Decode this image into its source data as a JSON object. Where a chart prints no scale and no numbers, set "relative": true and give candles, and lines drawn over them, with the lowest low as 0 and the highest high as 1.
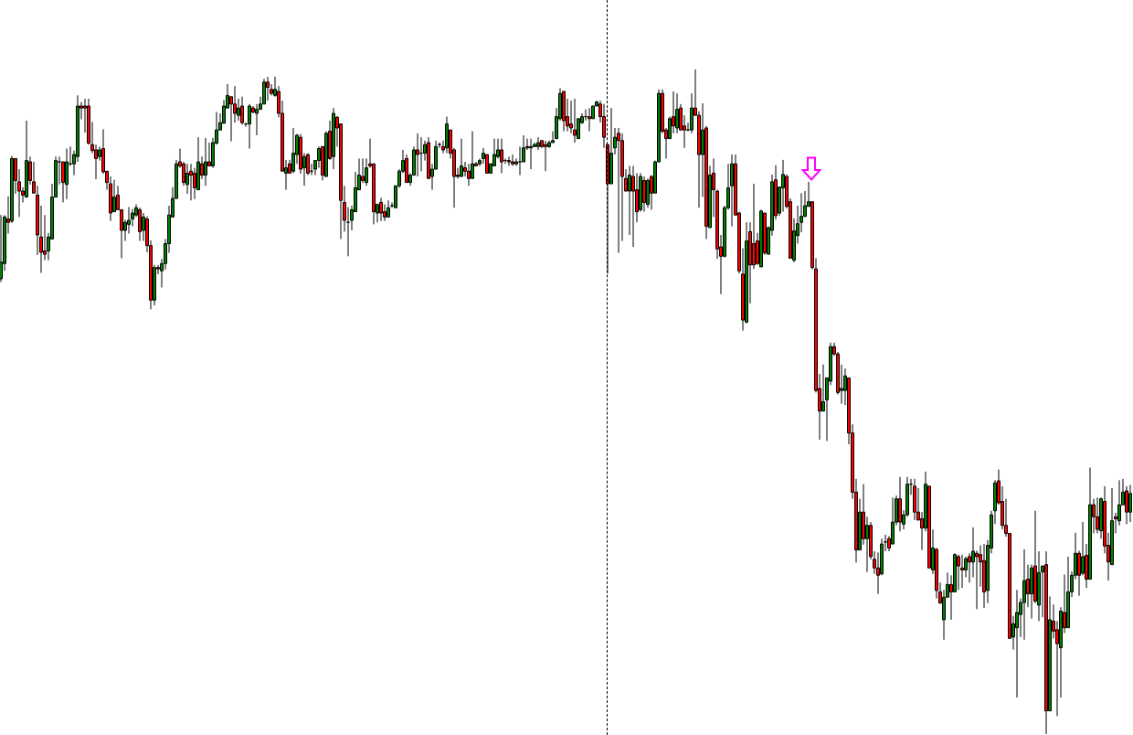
{
  "chart_data": {
    "type": "candlestick",
    "relative": true,
    "categories": [
      null,
      null,
      null,
      null,
      null,
      null,
      null,
      null,
      null,
      null,
      null,
      null,
      null,
      null,
      null,
      null,
      null,
      null,
      null,
      null,
      null,
      null,
      null,
      null,
      null,
      null,
      null,
      null,
      null,
      null,
      null,
      null,
      null,
      null,
      null,
      null,
      null,
      null,
      null,
      null,
      null,
      null,
      null,
      null,
      null,
      null,
      null,
      null,
      null,
      null,
      null,
      null,
      null,
      null,
      null,
      null,
      null,
      null,
      null,
      null,
      null,
      null,
      null,
      null,
      null,
      null,
      null,
      null,
      null,
      null,
      null,
      null,
      null,
      null,
      null,
      null,
      null,
      null,
      null,
      null,
      null,
      null,
      null,
      null,
      null,
      null,
      null,
      null,
      null,
      null,
      null,
      null,
      null,
      null,
      null,
      null,
      null,
      null,
      null,
      null,
      null,
      null,
      null,
      null,
      null,
      null,
      null,
      null,
      null,
      null,
      null,
      null,
      null,
      null,
      null,
      null,
      null,
      null,
      null,
      null,
      null,
      null,
      null,
      null,
      null,
      null,
      null,
      null,
      null,
      null,
      null,
      null,
      null,
      null,
      null,
      null,
      null,
      null,
      null,
      null,
      null,
      null,
      null,
      null,
      null,
      null,
      null,
      null,
      null,
      null,
      null,
      null,
      null,
      null,
      null,
      null,
      null,
      null,
      null,
      null,
      null,
      null,
      null,
      null,
      null,
      null,
      null,
      null,
      null,
      null,
      null,
      null,
      null,
      null,
      null,
      null,
      null,
      null,
      null,
      null,
      null,
      null,
      null,
      null,
      null,
      null,
      null,
      null,
      null,
      null,
      null,
      null,
      null,
      null,
      null,
      null,
      null,
      null,
      null,
      null,
      null,
      null,
      null,
      null,
      null,
      null,
      null,
      null,
      null,
      null,
      null,
      null,
      null,
      null,
      null,
      null,
      null,
      null,
      null,
      null,
      null,
      null,
      null,
      null,
      null,
      null,
      null,
      null,
      null,
      null,
      null,
      null,
      null,
      null,
      null,
      null,
      null,
      null,
      null,
      null,
      null,
      null,
      null,
      null,
      null,
      null,
      null,
      null,
      null,
      null,
      null,
      null,
      null,
      null,
      null,
      null,
      null,
      null,
      null,
      null,
      null,
      null,
      null,
      null,
      null,
      null,
      null,
      null,
      null,
      null,
      null,
      null,
      null,
      null,
      null,
      null,
      null,
      null,
      null,
      null,
      null,
      null,
      null,
      null,
      null,
      null,
      null,
      null,
      null,
      null,
      null,
      null,
      null,
      null,
      null,
      null,
      null,
      null,
      null,
      null,
      null,
      null,
      null,
      null,
      null,
      null,
      null,
      null,
      null,
      null
    ],
    "ohlc": [
      [
        0.685,
        0.781,
        0.68,
        0.71
      ],
      [
        0.708,
        0.781,
        0.697,
        0.778
      ],
      [
        0.775,
        0.809,
        0.753,
        0.77
      ],
      [
        0.772,
        0.87,
        0.769,
        0.866
      ],
      [
        0.866,
        0.866,
        0.813,
        0.833
      ],
      [
        0.831,
        0.85,
        0.778,
        0.817
      ],
      [
        0.817,
        0.823,
        0.8,
        0.811
      ],
      [
        0.808,
        0.923,
        0.808,
        0.863
      ],
      [
        0.861,
        0.869,
        0.827,
        0.833
      ],
      [
        0.831,
        0.861,
        0.814,
        0.814
      ],
      [
        0.811,
        0.825,
        0.721,
        0.751
      ],
      [
        0.748,
        0.795,
        0.694,
        0.725
      ],
      [
        0.727,
        0.781,
        0.713,
        0.722
      ],
      [
        0.727,
        0.754,
        0.713,
        0.748
      ],
      [
        0.745,
        0.828,
        0.745,
        0.808
      ],
      [
        0.808,
        0.869,
        0.808,
        0.863
      ],
      [
        0.861,
        0.869,
        0.827,
        0.861
      ],
      [
        0.861,
        0.861,
        0.8,
        0.83
      ],
      [
        0.827,
        0.881,
        0.805,
        0.861
      ],
      [
        0.858,
        0.884,
        0.855,
        0.858
      ],
      [
        0.858,
        0.878,
        0.841,
        0.872
      ],
      [
        0.869,
        0.961,
        0.861,
        0.945
      ],
      [
        0.945,
        0.951,
        0.925,
        0.942
      ],
      [
        0.945,
        0.956,
        0.905,
        0.942
      ],
      [
        0.945,
        0.956,
        0.887,
        0.889
      ],
      [
        0.887,
        0.921,
        0.874,
        0.878
      ],
      [
        0.879,
        0.887,
        0.835,
        0.866
      ],
      [
        0.869,
        0.884,
        0.863,
        0.879
      ],
      [
        0.881,
        0.91,
        0.843,
        0.846
      ],
      [
        0.847,
        0.847,
        0.819,
        0.83
      ],
      [
        0.828,
        0.839,
        0.772,
        0.784
      ],
      [
        0.786,
        0.834,
        0.786,
        0.808
      ],
      [
        0.811,
        0.825,
        0.789,
        0.789
      ],
      [
        0.789,
        0.789,
        0.716,
        0.758
      ],
      [
        0.758,
        0.774,
        0.742,
        0.77
      ],
      [
        0.767,
        0.793,
        0.753,
        0.773
      ],
      [
        0.775,
        0.79,
        0.764,
        0.784
      ],
      [
        0.781,
        0.797,
        0.778,
        0.792
      ],
      [
        0.789,
        0.792,
        0.742,
        0.756
      ],
      [
        0.758,
        0.784,
        0.742,
        0.778
      ],
      [
        0.775,
        0.779,
        0.725,
        0.735
      ],
      [
        0.735,
        0.743,
        0.639,
        0.653
      ],
      [
        0.653,
        0.706,
        0.645,
        0.702
      ],
      [
        0.702,
        0.706,
        0.692,
        0.7
      ],
      [
        0.697,
        0.715,
        0.672,
        0.708
      ],
      [
        0.708,
        0.745,
        0.699,
        0.738
      ],
      [
        0.738,
        0.795,
        0.724,
        0.781
      ],
      [
        0.778,
        0.823,
        0.778,
        0.806
      ],
      [
        0.806,
        0.864,
        0.806,
        0.858
      ],
      [
        0.861,
        0.881,
        0.852,
        0.855
      ],
      [
        0.858,
        0.861,
        0.825,
        0.83
      ],
      [
        0.827,
        0.858,
        0.813,
        0.844
      ],
      [
        0.847,
        0.858,
        0.803,
        0.841
      ],
      [
        0.844,
        0.852,
        0.805,
        0.822
      ],
      [
        0.819,
        0.898,
        0.819,
        0.861
      ],
      [
        0.858,
        0.869,
        0.835,
        0.841
      ],
      [
        0.841,
        0.897,
        0.825,
        0.861
      ],
      [
        0.861,
        0.89,
        0.855,
        0.855
      ],
      [
        0.855,
        0.897,
        0.852,
        0.89
      ],
      [
        0.889,
        0.936,
        0.887,
        0.909
      ],
      [
        0.909,
        0.934,
        0.909,
        0.92
      ],
      [
        0.919,
        0.954,
        0.919,
        0.945
      ],
      [
        0.942,
        0.978,
        0.942,
        0.961
      ],
      [
        0.959,
        0.959,
        0.892,
        0.948
      ],
      [
        0.948,
        0.975,
        0.92,
        0.934
      ],
      [
        0.931,
        0.956,
        0.923,
        0.942
      ],
      [
        0.945,
        0.959,
        0.917,
        0.92
      ],
      [
        0.918,
        0.92,
        0.914,
        0.918
      ],
      [
        0.918,
        0.948,
        0.881,
        0.945
      ],
      [
        0.942,
        0.945,
        0.934,
        0.936
      ],
      [
        0.934,
        0.948,
        0.901,
        0.94
      ],
      [
        0.94,
        0.959,
        0.94,
        0.948
      ],
      [
        0.948,
        0.986,
        0.948,
        0.981
      ],
      [
        0.981,
        0.989,
        0.953,
        0.973
      ],
      [
        0.97,
        0.978,
        0.961,
        0.964
      ],
      [
        0.961,
        0.989,
        0.959,
        0.97
      ],
      [
        0.967,
        0.975,
        0.928,
        0.934
      ],
      [
        0.934,
        0.953,
        0.847,
        0.847
      ],
      [
        0.844,
        0.864,
        0.819,
        0.852
      ],
      [
        0.858,
        0.864,
        0.844,
        0.844
      ],
      [
        0.847,
        0.912,
        0.844,
        0.874
      ],
      [
        0.872,
        0.903,
        0.858,
        0.901
      ],
      [
        0.898,
        0.903,
        0.843,
        0.85
      ],
      [
        0.852,
        0.874,
        0.825,
        0.869
      ],
      [
        0.872,
        0.874,
        0.841,
        0.844
      ],
      [
        0.847,
        0.858,
        0.841,
        0.847
      ],
      [
        0.85,
        0.863,
        0.841,
        0.863
      ],
      [
        0.863,
        0.884,
        0.852,
        0.881
      ],
      [
        0.884,
        0.884,
        0.833,
        0.841
      ],
      [
        0.839,
        0.907,
        0.839,
        0.904
      ],
      [
        0.907,
        0.923,
        0.864,
        0.866
      ],
      [
        0.869,
        0.942,
        0.85,
        0.934
      ],
      [
        0.928,
        0.93,
        0.884,
        0.912
      ],
      [
        0.918,
        0.918,
        0.745,
        0.803
      ],
      [
        0.8,
        0.825,
        0.756,
        0.773
      ],
      [
        0.77,
        0.793,
        0.719,
        0.77
      ],
      [
        0.773,
        0.795,
        0.758,
        0.789
      ],
      [
        0.786,
        0.846,
        0.786,
        0.822
      ],
      [
        0.819,
        0.866,
        0.819,
        0.841
      ],
      [
        0.839,
        0.866,
        0.829,
        0.833
      ],
      [
        0.83,
        0.866,
        0.825,
        0.852
      ],
      [
        0.858,
        0.896,
        0.852,
        0.855
      ],
      [
        0.858,
        0.858,
        0.767,
        0.786
      ],
      [
        0.784,
        0.797,
        0.77,
        0.797
      ],
      [
        0.8,
        0.807,
        0.772,
        0.784
      ],
      [
        0.786,
        0.797,
        0.772,
        0.778
      ],
      [
        0.778,
        0.803,
        0.778,
        0.792
      ],
      [
        0.795,
        0.8,
        0.792,
        0.795
      ],
      [
        0.792,
        0.825,
        0.792,
        0.825
      ],
      [
        0.825,
        0.85,
        0.822,
        0.847
      ],
      [
        0.847,
        0.879,
        0.844,
        0.863
      ],
      [
        0.866,
        0.872,
        0.83,
        0.83
      ],
      [
        0.83,
        0.844,
        0.825,
        0.841
      ],
      [
        0.841,
        0.884,
        0.841,
        0.879
      ],
      [
        0.879,
        0.904,
        0.839,
        0.872
      ],
      [
        0.874,
        0.898,
        0.847,
        0.874
      ],
      [
        0.874,
        0.893,
        0.863,
        0.887
      ],
      [
        0.89,
        0.898,
        0.836,
        0.836
      ],
      [
        0.839,
        0.858,
        0.819,
        0.85
      ],
      [
        0.85,
        0.893,
        0.85,
        0.884
      ],
      [
        0.887,
        0.89,
        0.882,
        0.887
      ],
      [
        0.884,
        0.893,
        0.874,
        0.879
      ],
      [
        0.882,
        0.929,
        0.874,
        0.918
      ],
      [
        0.909,
        0.909,
        0.866,
        0.874
      ],
      [
        0.879,
        0.882,
        0.792,
        0.839
      ],
      [
        0.841,
        0.852,
        0.836,
        0.839
      ],
      [
        0.839,
        0.896,
        0.839,
        0.855
      ],
      [
        0.852,
        0.861,
        0.839,
        0.847
      ],
      [
        0.847,
        0.858,
        0.825,
        0.836
      ],
      [
        0.836,
        0.907,
        0.836,
        0.858
      ],
      [
        0.858,
        0.861,
        0.855,
        0.855
      ],
      [
        0.858,
        0.866,
        0.855,
        0.863
      ],
      [
        0.866,
        0.882,
        0.858,
        0.874
      ],
      [
        0.872,
        0.872,
        0.844,
        0.844
      ],
      [
        0.844,
        0.858,
        0.844,
        0.858
      ],
      [
        0.855,
        0.896,
        0.855,
        0.872
      ],
      [
        0.869,
        0.896,
        0.866,
        0.879
      ],
      [
        0.879,
        0.896,
        0.844,
        0.861
      ],
      [
        0.863,
        0.866,
        0.858,
        0.863
      ],
      [
        0.863,
        0.869,
        0.855,
        0.861
      ],
      [
        0.861,
        0.872,
        0.855,
        0.858
      ],
      [
        0.858,
        0.866,
        0.855,
        0.861
      ],
      [
        0.861,
        0.884,
        0.841,
        0.861
      ],
      [
        0.861,
        0.901,
        0.861,
        0.882
      ],
      [
        0.884,
        0.896,
        0.879,
        0.882
      ],
      [
        0.882,
        0.896,
        0.85,
        0.884
      ],
      [
        0.884,
        0.89,
        0.883,
        0.887
      ],
      [
        0.884,
        0.898,
        0.879,
        0.89
      ],
      [
        0.893,
        0.893,
        0.882,
        0.884
      ],
      [
        0.887,
        0.893,
        0.847,
        0.884
      ],
      [
        0.884,
        0.893,
        0.882,
        0.89
      ],
      [
        0.89,
        0.907,
        0.89,
        0.893
      ],
      [
        0.896,
        0.942,
        0.896,
        0.929
      ],
      [
        0.926,
        0.972,
        0.923,
        0.964
      ],
      [
        0.967,
        0.967,
        0.907,
        0.923
      ],
      [
        0.929,
        0.956,
        0.907,
        0.915
      ],
      [
        0.918,
        0.953,
        0.904,
        0.912
      ],
      [
        0.909,
        0.956,
        0.89,
        0.901
      ],
      [
        0.896,
        0.926,
        0.896,
        0.926
      ],
      [
        0.92,
        0.934,
        0.918,
        0.929
      ],
      [
        0.929,
        0.94,
        0.923,
        0.929
      ],
      [
        0.929,
        0.942,
        0.907,
        0.926
      ],
      [
        0.926,
        0.945,
        0.926,
        0.945
      ],
      [
        0.945,
        0.953,
        0.945,
        0.951
      ],
      [
        0.948,
        0.953,
        0.92,
        0.929
      ],
      [
        0.929,
        0.948,
        0.882,
        0.898
      ],
      [
        0.887,
        0.887,
        0.693,
        0.828
      ],
      [
        0.828,
        0.942,
        0.828,
        0.874
      ],
      [
        0.882,
        0.912,
        0.872,
        0.898
      ],
      [
        0.904,
        0.912,
        0.724,
        0.893
      ],
      [
        0.893,
        0.904,
        0.742,
        0.839
      ],
      [
        0.836,
        0.85,
        0.817,
        0.817
      ],
      [
        0.817,
        0.855,
        0.751,
        0.841
      ],
      [
        0.839,
        0.855,
        0.733,
        0.817
      ],
      [
        0.819,
        0.844,
        0.77,
        0.786
      ],
      [
        0.789,
        0.844,
        0.786,
        0.839
      ],
      [
        0.833,
        0.839,
        0.786,
        0.8
      ],
      [
        0.797,
        0.836,
        0.792,
        0.833
      ],
      [
        0.839,
        0.841,
        0.789,
        0.814
      ],
      [
        0.814,
        0.863,
        0.814,
        0.861
      ],
      [
        0.861,
        0.97,
        0.861,
        0.964
      ],
      [
        0.964,
        0.97,
        0.904,
        0.907
      ],
      [
        0.909,
        0.912,
        0.866,
        0.896
      ],
      [
        0.896,
        0.929,
        0.896,
        0.926
      ],
      [
        0.929,
        0.967,
        0.904,
        0.915
      ],
      [
        0.912,
        0.964,
        0.904,
        0.94
      ],
      [
        0.942,
        0.948,
        0.909,
        0.909
      ],
      [
        0.915,
        0.931,
        0.882,
        0.909
      ],
      [
        0.909,
        0.92,
        0.907,
        0.909
      ],
      [
        0.909,
        0.964,
        0.904,
        0.942
      ],
      [
        0.942,
        1.0,
        0.931,
        0.931
      ],
      [
        0.931,
        0.937,
        0.792,
        0.872
      ],
      [
        0.872,
        0.949,
        0.808,
        0.909
      ],
      [
        0.912,
        0.915,
        0.745,
        0.764
      ],
      [
        0.762,
        0.855,
        0.762,
        0.841
      ],
      [
        0.844,
        0.866,
        0.778,
        0.819
      ],
      [
        0.817,
        0.819,
        0.715,
        0.73
      ],
      [
        0.733,
        0.751,
        0.662,
        0.719
      ],
      [
        0.719,
        0.795,
        0.717,
        0.792
      ],
      [
        0.792,
        0.858,
        0.789,
        0.822
      ],
      [
        0.825,
        0.872,
        0.764,
        0.858
      ],
      [
        0.858,
        0.872,
        0.781,
        0.781
      ],
      [
        0.784,
        0.786,
        0.693,
        0.697
      ],
      [
        0.692,
        0.731,
        0.607,
        0.623
      ],
      [
        0.62,
        0.77,
        0.618,
        0.742
      ],
      [
        0.756,
        0.77,
        0.648,
        0.706
      ],
      [
        0.738,
        0.828,
        0.7,
        0.706
      ],
      [
        0.742,
        0.754,
        0.706,
        0.708
      ],
      [
        0.703,
        0.789,
        0.703,
        0.787
      ],
      [
        0.784,
        0.784,
        0.721,
        0.724
      ],
      [
        0.722,
        0.764,
        0.722,
        0.762
      ],
      [
        0.758,
        0.842,
        0.75,
        0.831
      ],
      [
        0.834,
        0.856,
        0.774,
        0.78
      ],
      [
        0.784,
        0.823,
        0.78,
        0.823
      ],
      [
        0.822,
        0.864,
        0.786,
        0.842
      ],
      [
        0.839,
        0.842,
        0.791,
        0.794
      ],
      [
        0.801,
        0.806,
        0.716,
        0.716
      ],
      [
        0.713,
        0.776,
        0.71,
        0.757
      ],
      [
        0.75,
        0.795,
        0.738,
        0.768
      ],
      [
        0.77,
        0.814,
        0.755,
        0.779
      ],
      [
        0.779,
        0.817,
        0.778,
        0.795
      ],
      [
        0.794,
        0.831,
        0.794,
        0.801
      ],
      [
        0.801,
        0.801,
        0.699,
        0.702
      ],
      [
        0.7,
        0.716,
        0.514,
        0.517
      ],
      [
        0.52,
        0.542,
        0.443,
        0.486
      ],
      [
        0.486,
        0.556,
        0.486,
        0.5
      ],
      [
        0.503,
        0.536,
        0.441,
        0.536
      ],
      [
        0.531,
        0.589,
        0.525,
        0.583
      ],
      [
        0.583,
        0.589,
        0.569,
        0.572
      ],
      [
        0.572,
        0.575,
        0.511,
        0.514
      ],
      [
        0.517,
        0.556,
        0.497,
        0.52
      ],
      [
        0.517,
        0.55,
        0.495,
        0.539
      ],
      [
        0.536,
        0.536,
        0.436,
        0.453
      ],
      [
        0.453,
        0.466,
        0.354,
        0.364
      ],
      [
        0.364,
        0.384,
        0.258,
        0.277
      ],
      [
        0.277,
        0.354,
        0.277,
        0.334
      ],
      [
        0.334,
        0.376,
        0.285,
        0.294
      ],
      [
        0.294,
        0.327,
        0.244,
        0.314
      ],
      [
        0.314,
        0.319,
        0.263,
        0.267
      ],
      [
        0.263,
        0.275,
        0.241,
        0.25
      ],
      [
        0.25,
        0.273,
        0.211,
        0.239
      ],
      [
        0.241,
        0.294,
        0.239,
        0.286
      ],
      [
        0.289,
        0.3,
        0.275,
        0.289
      ],
      [
        0.294,
        0.298,
        0.275,
        0.28
      ],
      [
        0.286,
        0.356,
        0.286,
        0.319
      ],
      [
        0.319,
        0.359,
        0.314,
        0.354
      ],
      [
        0.354,
        0.387,
        0.305,
        0.319
      ],
      [
        0.316,
        0.337,
        0.308,
        0.33
      ],
      [
        0.33,
        0.387,
        0.327,
        0.376
      ],
      [
        0.376,
        0.384,
        0.36,
        0.376
      ],
      [
        0.373,
        0.384,
        0.322,
        0.334
      ],
      [
        0.334,
        0.37,
        0.322,
        0.322
      ],
      [
        0.324,
        0.334,
        0.277,
        0.31
      ],
      [
        0.31,
        0.395,
        0.305,
        0.376
      ],
      [
        0.373,
        0.373,
        0.25,
        0.25
      ],
      [
        0.247,
        0.308,
        0.241,
        0.28
      ],
      [
        0.278,
        0.28,
        0.204,
        0.216
      ],
      [
        0.214,
        0.228,
        0.197,
        0.197
      ],
      [
        0.172,
        0.217,
        0.142,
        0.206
      ],
      [
        0.206,
        0.243,
        0.206,
        0.225
      ],
      [
        0.225,
        0.239,
        0.172,
        0.214
      ],
      [
        0.214,
        0.272,
        0.214,
        0.27
      ],
      [
        0.267,
        0.27,
        0.217,
        0.253
      ],
      [
        0.25,
        0.27,
        0.22,
        0.247
      ],
      [
        0.247,
        0.267,
        0.236,
        0.264
      ],
      [
        0.267,
        0.272,
        0.228,
        0.259
      ],
      [
        0.259,
        0.311,
        0.236,
        0.275
      ],
      [
        0.272,
        0.276,
        0.188,
        0.267
      ],
      [
        0.27,
        0.284,
        0.222,
        0.259
      ],
      [
        0.261,
        0.286,
        0.19,
        0.214
      ],
      [
        0.216,
        0.292,
        0.197,
        0.284
      ],
      [
        0.28,
        0.336,
        0.272,
        0.33
      ],
      [
        0.336,
        0.382,
        0.316,
        0.378
      ],
      [
        0.381,
        0.398,
        0.345,
        0.348
      ],
      [
        0.35,
        0.373,
        0.308,
        0.314
      ],
      [
        0.314,
        0.354,
        0.297,
        0.302
      ],
      [
        0.302,
        0.302,
        0.144,
        0.144
      ],
      [
        0.146,
        0.178,
        0.127,
        0.166
      ],
      [
        0.16,
        0.217,
        0.055,
        0.183
      ],
      [
        0.18,
        0.204,
        0.146,
        0.198
      ],
      [
        0.198,
        0.278,
        0.142,
        0.231
      ],
      [
        0.233,
        0.255,
        0.191,
        0.211
      ],
      [
        0.211,
        0.255,
        0.174,
        0.25
      ],
      [
        0.253,
        0.336,
        0.197,
        0.2
      ],
      [
        0.194,
        0.275,
        0.17,
        0.243
      ],
      [
        0.244,
        0.253,
        0.176,
        0.253
      ],
      [
        0.255,
        0.275,
        0.0,
        0.035
      ],
      [
        0.035,
        0.207,
        0.035,
        0.172
      ],
      [
        0.17,
        0.195,
        0.144,
        0.155
      ],
      [
        0.157,
        0.17,
        0.027,
        0.136
      ],
      [
        0.13,
        0.191,
        0.055,
        0.185
      ],
      [
        0.183,
        0.24,
        0.152,
        0.16
      ],
      [
        0.16,
        0.267,
        0.16,
        0.214
      ],
      [
        0.214,
        0.245,
        0.206,
        0.239
      ],
      [
        0.239,
        0.303,
        0.233,
        0.272
      ],
      [
        0.272,
        0.276,
        0.208,
        0.239
      ],
      [
        0.242,
        0.319,
        0.239,
        0.267
      ],
      [
        0.269,
        0.286,
        0.22,
        0.233
      ],
      [
        0.233,
        0.401,
        0.233,
        0.345
      ],
      [
        0.345,
        0.354,
        0.302,
        0.327
      ],
      [
        0.327,
        0.356,
        0.302,
        0.308
      ],
      [
        0.306,
        0.356,
        0.294,
        0.354
      ],
      [
        0.35,
        0.373,
        0.272,
        0.283
      ],
      [
        0.284,
        0.303,
        0.231,
        0.259
      ],
      [
        0.255,
        0.37,
        0.255,
        0.321
      ],
      [
        0.327,
        0.333,
        0.302,
        0.324
      ],
      [
        0.321,
        0.382,
        0.314,
        0.345
      ],
      [
        0.345,
        0.384,
        0.345,
        0.364
      ],
      [
        0.366,
        0.373,
        0.316,
        0.334
      ],
      [
        0.334,
        0.375,
        0.319,
        0.362
      ]
    ],
    "colors": [
      "#008000",
      "#008000",
      "#ff0000",
      "#008000",
      "#ff0000",
      "#ff0000",
      "#ff0000",
      "#008000",
      "#ff0000",
      "#ff0000",
      "#ff0000",
      "#ff0000",
      "#ff0000",
      "#008000",
      "#008000",
      "#008000",
      "#000000",
      "#ff0000",
      "#008000",
      "#000000",
      "#008000",
      "#008000",
      "#ff0000",
      "#ff0000",
      "#ff0000",
      "#ff0000",
      "#ff0000",
      "#008000",
      "#ff0000",
      "#ff0000",
      "#ff0000",
      "#008000",
      "#ff0000",
      "#ff0000",
      "#008000",
      "#008000",
      "#008000",
      "#008000",
      "#ff0000",
      "#008000",
      "#ff0000",
      "#ff0000",
      "#008000",
      "#ff0000",
      "#008000",
      "#008000",
      "#008000",
      "#008000",
      "#008000",
      "#ff0000",
      "#ff0000",
      "#008000",
      "#ff0000",
      "#ff0000",
      "#008000",
      "#ff0000",
      "#008000",
      "#ff0000",
      "#008000",
      "#008000",
      "#008000",
      "#008000",
      "#008000",
      "#ff0000",
      "#ff0000",
      "#008000",
      "#ff0000",
      "#000000",
      "#008000",
      "#ff0000",
      "#008000",
      "#008000",
      "#008000",
      "#ff0000",
      "#ff0000",
      "#008000",
      "#ff0000",
      "#ff0000",
      "#008000",
      "#ff0000",
      "#008000",
      "#008000",
      "#ff0000",
      "#008000",
      "#ff0000",
      "#000000",
      "#008000",
      "#008000",
      "#ff0000",
      "#008000",
      "#ff0000",
      "#008000",
      "#ff0000",
      "#ff0000",
      "#ff0000",
      "#000000",
      "#008000",
      "#008000",
      "#008000",
      "#ff0000",
      "#008000",
      "#ff0000",
      "#ff0000",
      "#008000",
      "#ff0000",
      "#ff0000",
      "#008000",
      "#000000",
      "#008000",
      "#008000",
      "#008000",
      "#ff0000",
      "#008000",
      "#008000",
      "#ff0000",
      "#000000",
      "#008000",
      "#ff0000",
      "#008000",
      "#008000",
      "#000000",
      "#ff0000",
      "#008000",
      "#ff0000",
      "#ff0000",
      "#ff0000",
      "#008000",
      "#ff0000",
      "#ff0000",
      "#008000",
      "#ff0000",
      "#008000",
      "#008000",
      "#ff0000",
      "#008000",
      "#008000",
      "#008000",
      "#ff0000",
      "#000000",
      "#ff0000",
      "#ff0000",
      "#008000",
      "#000000",
      "#008000",
      "#ff0000",
      "#008000",
      "#008000",
      "#008000",
      "#ff0000",
      "#ff0000",
      "#008000",
      "#008000",
      "#008000",
      "#008000",
      "#ff0000",
      "#ff0000",
      "#ff0000",
      "#ff0000",
      "#008000",
      "#008000",
      "#000000",
      "#ff0000",
      "#008000",
      "#008000",
      "#ff0000",
      "#ff0000",
      "#ff0000",
      "#008000",
      "#008000",
      "#ff0000",
      "#ff0000",
      "#ff0000",
      "#008000",
      "#ff0000",
      "#ff0000",
      "#008000",
      "#ff0000",
      "#008000",
      "#ff0000",
      "#008000",
      "#008000",
      "#ff0000",
      "#ff0000",
      "#008000",
      "#ff0000",
      "#008000",
      "#ff0000",
      "#ff0000",
      "#000000",
      "#008000",
      "#ff0000",
      "#ff0000",
      "#008000",
      "#ff0000",
      "#008000",
      "#ff0000",
      "#ff0000",
      "#ff0000",
      "#008000",
      "#008000",
      "#008000",
      "#ff0000",
      "#ff0000",
      "#ff0000",
      "#008000",
      "#ff0000",
      "#ff0000",
      "#ff0000",
      "#008000",
      "#ff0000",
      "#008000",
      "#008000",
      "#ff0000",
      "#008000",
      "#008000",
      "#ff0000",
      "#ff0000",
      "#008000",
      "#008000",
      "#008000",
      "#008000",
      "#008000",
      "#ff0000",
      "#ff0000",
      "#ff0000",
      "#008000",
      "#008000",
      "#008000",
      "#ff0000",
      "#ff0000",
      "#008000",
      "#008000",
      "#ff0000",
      "#ff0000",
      "#ff0000",
      "#008000",
      "#ff0000",
      "#008000",
      "#ff0000",
      "#ff0000",
      "#ff0000",
      "#008000",
      "#000000",
      "#ff0000",
      "#008000",
      "#008000",
      "#ff0000",
      "#008000",
      "#008000",
      "#000000",
      "#ff0000",
      "#ff0000",
      "#ff0000",
      "#008000",
      "#ff0000",
      "#008000",
      "#ff0000",
      "#ff0000",
      "#008000",
      "#008000",
      "#ff0000",
      "#008000",
      "#ff0000",
      "#ff0000",
      "#008000",
      "#ff0000",
      "#008000",
      "#ff0000",
      "#ff0000",
      "#ff0000",
      "#008000",
      "#008000",
      "#008000",
      "#ff0000",
      "#ff0000",
      "#ff0000",
      "#ff0000",
      "#008000",
      "#008000",
      "#008000",
      "#008000",
      "#ff0000",
      "#008000",
      "#ff0000",
      "#008000",
      "#008000",
      "#ff0000",
      "#008000",
      "#ff0000",
      "#ff0000",
      "#008000",
      "#ff0000",
      "#008000",
      "#008000",
      "#008000",
      "#ff0000",
      "#008000",
      "#ff0000",
      "#008000",
      "#ff0000",
      "#ff0000",
      "#008000",
      "#ff0000",
      "#ff0000",
      "#008000",
      "#ff0000",
      "#008000",
      "#008000",
      "#ff0000",
      "#008000"
    ]
  }
}
